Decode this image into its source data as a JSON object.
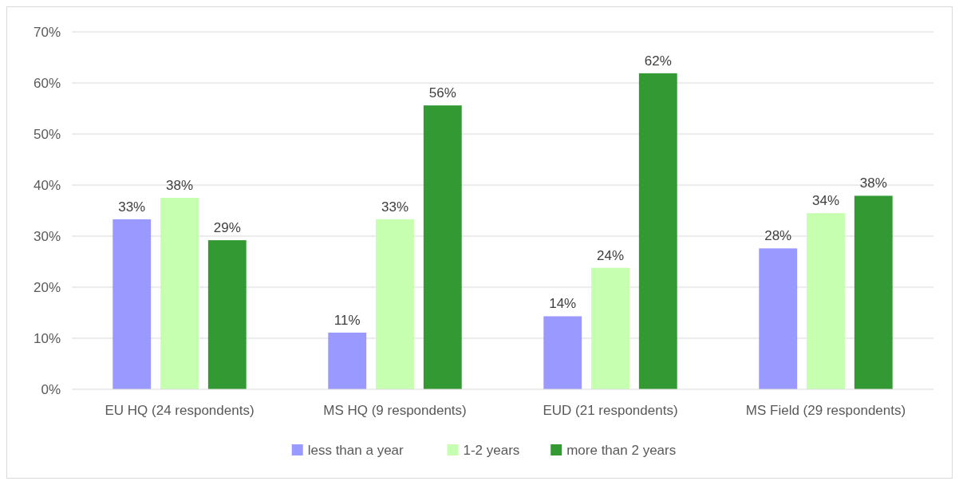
{
  "chart_data": {
    "type": "bar",
    "categories": [
      "EU HQ (24 respondents)",
      "MS HQ (9 respondents)",
      "EUD (21 respondents)",
      "MS Field (29 respondents)"
    ],
    "series": [
      {
        "name": "less than a year",
        "color": "#9999ff",
        "values": [
          33.3,
          11.1,
          14.3,
          27.6
        ],
        "value_labels": [
          "33%",
          "11%",
          "14%",
          "28%"
        ]
      },
      {
        "name": "1-2 years",
        "color": "#c6ffb0",
        "values": [
          37.5,
          33.3,
          23.8,
          34.5
        ],
        "value_labels": [
          "38%",
          "33%",
          "24%",
          "34%"
        ]
      },
      {
        "name": "more than 2 years",
        "color": "#339933",
        "values": [
          29.2,
          55.6,
          61.9,
          37.9
        ],
        "value_labels": [
          "29%",
          "56%",
          "62%",
          "38%"
        ]
      }
    ],
    "ylim": [
      0,
      70
    ],
    "yticks": [
      {
        "value": 0,
        "label": "0%"
      },
      {
        "value": 10,
        "label": "10%"
      },
      {
        "value": 20,
        "label": "20%"
      },
      {
        "value": 30,
        "label": "30%"
      },
      {
        "value": 40,
        "label": "40%"
      },
      {
        "value": 50,
        "label": "50%"
      },
      {
        "value": 60,
        "label": "60%"
      },
      {
        "value": 70,
        "label": "70%"
      }
    ],
    "grid": "y",
    "legend": "bottom"
  }
}
